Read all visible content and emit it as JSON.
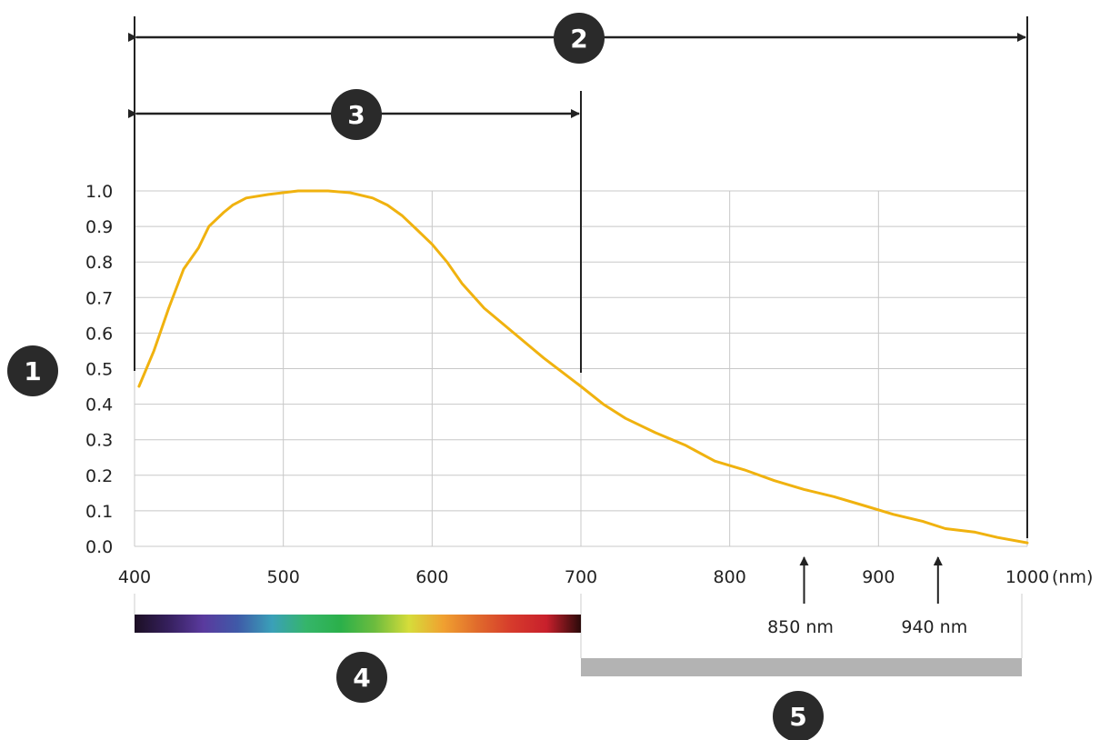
{
  "chart_data": {
    "type": "line",
    "title": "",
    "xlabel": "",
    "ylabel": "",
    "x_unit_label": "(nm)",
    "xlim": [
      400,
      1000
    ],
    "ylim": [
      0,
      1
    ],
    "x_ticks": [
      "400",
      "500",
      "600",
      "700",
      "800",
      "900",
      "1000"
    ],
    "y_ticks": [
      "0.0",
      "0.1",
      "0.2",
      "0.3",
      "0.4",
      "0.5",
      "0.6",
      "0.7",
      "0.8",
      "0.9",
      "1.0"
    ],
    "grid": true,
    "series": [
      {
        "color": "#f0b20f",
        "x": [
          403,
          413,
          423,
          433,
          443,
          450,
          460,
          466,
          475,
          490,
          510,
          530,
          545,
          560,
          570,
          580,
          590,
          600,
          610,
          620,
          635,
          655,
          675,
          700,
          715,
          730,
          750,
          770,
          790,
          810,
          830,
          850,
          870,
          890,
          910,
          930,
          945,
          965,
          980,
          1000
        ],
        "y": [
          0.45,
          0.55,
          0.67,
          0.78,
          0.84,
          0.9,
          0.94,
          0.96,
          0.98,
          0.99,
          1.0,
          1.0,
          0.995,
          0.98,
          0.96,
          0.93,
          0.89,
          0.85,
          0.8,
          0.74,
          0.67,
          0.6,
          0.53,
          0.45,
          0.4,
          0.36,
          0.32,
          0.285,
          0.24,
          0.215,
          0.185,
          0.16,
          0.14,
          0.115,
          0.09,
          0.07,
          0.05,
          0.04,
          0.025,
          0.01
        ]
      }
    ],
    "annotations": [
      {
        "label": "850 nm",
        "x": 850
      },
      {
        "label": "940 nm",
        "x": 940
      }
    ],
    "markers": [
      {
        "num": "1"
      },
      {
        "num": "2"
      },
      {
        "num": "3"
      },
      {
        "num": "4"
      },
      {
        "num": "5"
      }
    ],
    "spectrum_colors": [
      "#1c0f24",
      "#36205e",
      "#5a3a9e",
      "#3f5aa8",
      "#3aa0b8",
      "#35b56a",
      "#2bb04a",
      "#6cbc3e",
      "#d6dc3a",
      "#f0a030",
      "#e06a2c",
      "#d63a2c",
      "#c8202c",
      "#2a0a0a"
    ],
    "nir_bar_color": "#b3b3b3",
    "marker_color": "#2a2a2a"
  }
}
